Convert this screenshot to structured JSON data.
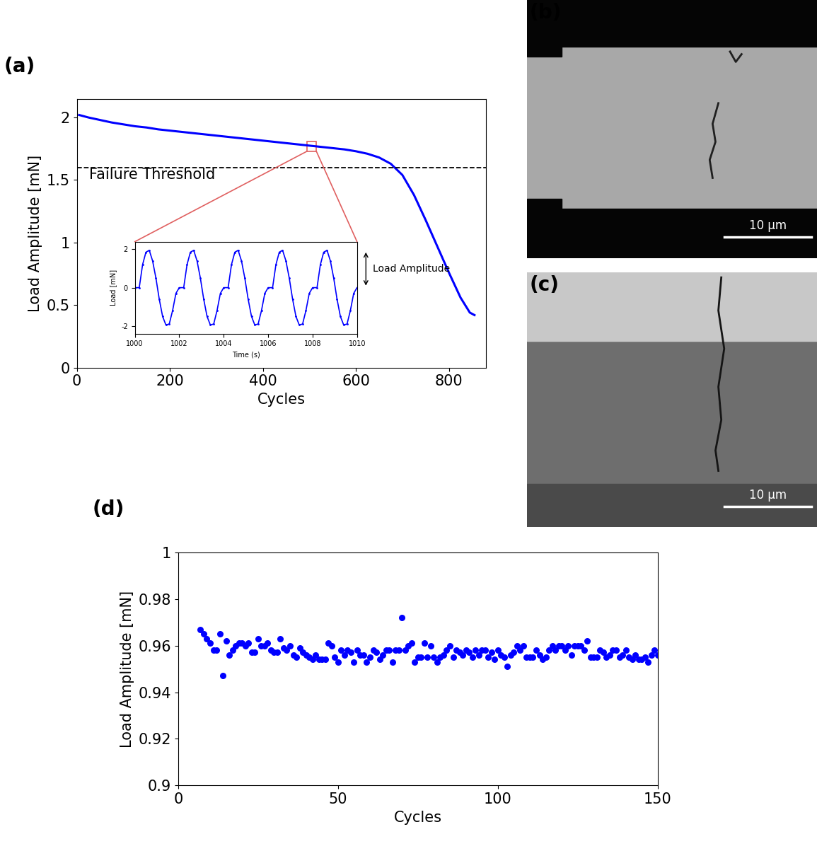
{
  "chart_data": [
    {
      "type": "line",
      "label": "(a)",
      "x_label": "Cycles",
      "y_label": "Load Amplitude [mN]",
      "color": "#0000ff",
      "line_style": "solid",
      "x": [
        5,
        25,
        50,
        75,
        100,
        125,
        150,
        175,
        200,
        225,
        250,
        275,
        300,
        325,
        350,
        375,
        400,
        425,
        450,
        475,
        500,
        525,
        550,
        575,
        600,
        625,
        650,
        675,
        700,
        725,
        750,
        775,
        800,
        825,
        845,
        855
      ],
      "values": [
        2.02,
        2.0,
        1.98,
        1.96,
        1.945,
        1.93,
        1.92,
        1.905,
        1.895,
        1.885,
        1.875,
        1.865,
        1.855,
        1.845,
        1.835,
        1.825,
        1.815,
        1.805,
        1.795,
        1.785,
        1.775,
        1.765,
        1.755,
        1.745,
        1.73,
        1.71,
        1.68,
        1.63,
        1.54,
        1.38,
        1.18,
        0.97,
        0.76,
        0.56,
        0.44,
        0.42
      ],
      "xlim": [
        0,
        880
      ],
      "xticks": [
        0,
        200,
        400,
        600,
        800
      ],
      "ylim": [
        0,
        2.15
      ],
      "yticks": [
        0,
        0.5,
        1,
        1.5,
        2
      ],
      "threshold": {
        "value": 1.6,
        "label": "Failure Threshold"
      },
      "zoom": {
        "x": [
          495,
          515
        ],
        "y": [
          1.73,
          1.81
        ]
      }
    },
    {
      "type": "line",
      "x_label": "Time (s)",
      "y_label": "Load [mN]",
      "color": "#0000ff",
      "marker": "dot",
      "line_style": "solid",
      "annotation": "Load Amplitude",
      "x": [
        1000,
        1000.2,
        1000.35,
        1000.5,
        1000.65,
        1000.8,
        1000.95,
        1001.1,
        1001.25,
        1001.4,
        1001.55,
        1001.7,
        1001.85,
        1002,
        1002.2,
        1002.35,
        1002.5,
        1002.65,
        1002.8,
        1002.95,
        1003.1,
        1003.25,
        1003.4,
        1003.55,
        1003.7,
        1003.85,
        1004,
        1004.2,
        1004.35,
        1004.5,
        1004.65,
        1004.8,
        1004.95,
        1005.1,
        1005.25,
        1005.4,
        1005.55,
        1005.7,
        1005.85,
        1006,
        1006.2,
        1006.35,
        1006.5,
        1006.65,
        1006.8,
        1006.95,
        1007.1,
        1007.25,
        1007.4,
        1007.55,
        1007.7,
        1007.85,
        1008,
        1008.2,
        1008.35,
        1008.5,
        1008.65,
        1008.8,
        1008.95,
        1009.1,
        1009.25,
        1009.4,
        1009.55,
        1009.7,
        1009.85,
        1010
      ],
      "values": [
        0,
        0,
        1.2,
        1.85,
        1.95,
        1.4,
        0.5,
        -0.6,
        -1.5,
        -1.95,
        -1.9,
        -1.2,
        -0.3,
        0,
        0,
        1.2,
        1.85,
        1.95,
        1.4,
        0.5,
        -0.6,
        -1.5,
        -1.95,
        -1.9,
        -1.2,
        -0.3,
        0,
        0,
        1.2,
        1.85,
        1.95,
        1.4,
        0.5,
        -0.6,
        -1.5,
        -1.95,
        -1.9,
        -1.2,
        -0.3,
        0,
        0,
        1.2,
        1.85,
        1.95,
        1.4,
        0.5,
        -0.6,
        -1.5,
        -1.95,
        -1.9,
        -1.2,
        -0.3,
        0,
        0,
        1.2,
        1.85,
        1.95,
        1.4,
        0.5,
        -0.6,
        -1.5,
        -1.95,
        -1.9,
        -1.2,
        -0.3,
        0
      ],
      "xlim": [
        1000,
        1010
      ],
      "xticks": [
        1000,
        1002,
        1004,
        1006,
        1008,
        1010
      ],
      "ylim": [
        -2.4,
        2.4
      ],
      "yticks": [
        -2,
        0,
        2
      ]
    },
    {
      "type": "scatter",
      "label": "(d)",
      "x_label": "Cycles",
      "y_label": "Load Amplitude [mN]",
      "color": "#0000ff",
      "marker": "o",
      "x": [
        7,
        8,
        9,
        10,
        11,
        12,
        13,
        14,
        15,
        16,
        17,
        18,
        19,
        20,
        21,
        22,
        23,
        24,
        25,
        26,
        27,
        28,
        29,
        30,
        31,
        32,
        33,
        34,
        35,
        36,
        37,
        38,
        39,
        40,
        41,
        42,
        43,
        44,
        45,
        46,
        47,
        48,
        49,
        50,
        51,
        52,
        53,
        54,
        55,
        56,
        57,
        58,
        59,
        60,
        61,
        62,
        63,
        64,
        65,
        66,
        67,
        68,
        69,
        70,
        71,
        72,
        73,
        74,
        75,
        76,
        77,
        78,
        79,
        80,
        81,
        82,
        83,
        84,
        85,
        86,
        87,
        88,
        89,
        90,
        91,
        92,
        93,
        94,
        95,
        96,
        97,
        98,
        99,
        100,
        101,
        102,
        103,
        104,
        105,
        106,
        107,
        108,
        109,
        110,
        111,
        112,
        113,
        114,
        115,
        116,
        117,
        118,
        119,
        120,
        121,
        122,
        123,
        124,
        125,
        126,
        127,
        128,
        129,
        130,
        131,
        132,
        133,
        134,
        135,
        136,
        137,
        138,
        139,
        140,
        141,
        142,
        143,
        144,
        145,
        146,
        147,
        148,
        149,
        150
      ],
      "values": [
        0.967,
        0.965,
        0.963,
        0.961,
        0.958,
        0.958,
        0.965,
        0.947,
        0.962,
        0.956,
        0.958,
        0.96,
        0.961,
        0.961,
        0.96,
        0.961,
        0.957,
        0.957,
        0.963,
        0.96,
        0.96,
        0.961,
        0.958,
        0.957,
        0.957,
        0.963,
        0.959,
        0.958,
        0.96,
        0.956,
        0.955,
        0.959,
        0.957,
        0.956,
        0.955,
        0.954,
        0.956,
        0.954,
        0.954,
        0.954,
        0.961,
        0.96,
        0.955,
        0.953,
        0.958,
        0.956,
        0.958,
        0.957,
        0.953,
        0.958,
        0.956,
        0.956,
        0.953,
        0.955,
        0.958,
        0.957,
        0.954,
        0.956,
        0.958,
        0.958,
        0.953,
        0.958,
        0.958,
        0.972,
        0.958,
        0.96,
        0.961,
        0.953,
        0.955,
        0.955,
        0.961,
        0.955,
        0.96,
        0.955,
        0.953,
        0.955,
        0.956,
        0.958,
        0.96,
        0.955,
        0.958,
        0.957,
        0.956,
        0.958,
        0.957,
        0.955,
        0.958,
        0.956,
        0.958,
        0.958,
        0.955,
        0.957,
        0.954,
        0.958,
        0.956,
        0.955,
        0.951,
        0.956,
        0.957,
        0.96,
        0.958,
        0.96,
        0.955,
        0.955,
        0.955,
        0.958,
        0.956,
        0.954,
        0.955,
        0.958,
        0.96,
        0.958,
        0.96,
        0.96,
        0.958,
        0.96,
        0.956,
        0.96,
        0.96,
        0.96,
        0.958,
        0.962,
        0.955,
        0.955,
        0.955,
        0.958,
        0.957,
        0.955,
        0.956,
        0.958,
        0.958,
        0.955,
        0.956,
        0.958,
        0.955,
        0.954,
        0.956,
        0.954,
        0.954,
        0.955,
        0.953,
        0.956,
        0.958,
        0.956
      ],
      "xlim": [
        0,
        150
      ],
      "xticks": [
        0,
        50,
        100,
        150
      ],
      "ylim": [
        0.9,
        1
      ],
      "yticks": [
        0.9,
        0.92,
        0.94,
        0.96,
        0.98,
        1
      ]
    }
  ],
  "images": [
    {
      "label": "(b)",
      "scale_bar": "10 µm"
    },
    {
      "label": "(c)",
      "scale_bar": "10 µm"
    }
  ]
}
